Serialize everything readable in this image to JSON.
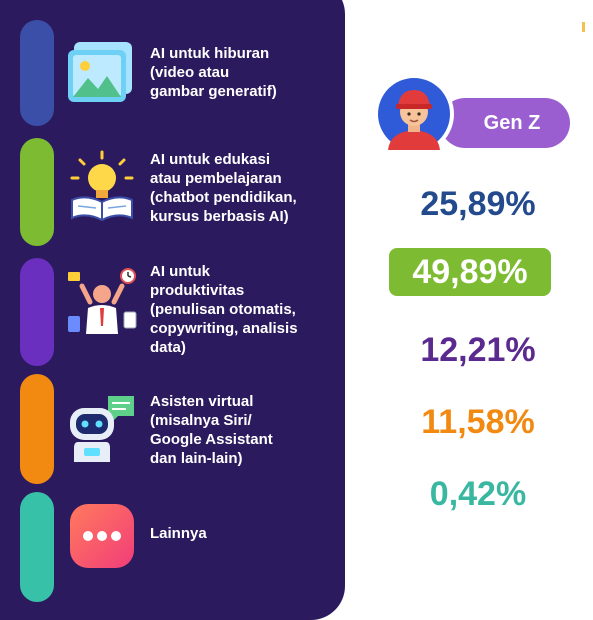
{
  "categories": [
    {
      "id": "hiburan",
      "lines": [
        "AI untuk hiburan",
        "(video atau",
        "gambar generatif)"
      ],
      "color": "#3b4fa8",
      "icon": "landscape-image-icon",
      "value": "",
      "valueColor": ""
    },
    {
      "id": "edukasi",
      "lines": [
        "AI untuk edukasi",
        "atau pembelajaran",
        "(chatbot pendidikan,",
        "kursus berbasis AI)"
      ],
      "color": "#7dbb32",
      "icon": "lightbulb-book-icon",
      "value": "25,89%",
      "valueColor": "#234a8d"
    },
    {
      "id": "produktivitas",
      "lines": [
        "AI untuk",
        "produktivitas",
        "(penulisan otomatis,",
        "copywriting, analisis",
        "data)"
      ],
      "color": "#6a2fbf",
      "icon": "multitasking-person-icon",
      "value": "49,89%",
      "valueColor": "#ffffff"
    },
    {
      "id": "asisten",
      "lines": [
        "Asisten virtual",
        "(misalnya Siri/",
        "Google Assistant",
        "dan lain-lain)"
      ],
      "color": "#f28a12",
      "icon": "robot-assistant-icon",
      "value": "12,21%",
      "valueColor": "#5b2a8e"
    },
    {
      "id": "lainnya",
      "lines": [
        "Lainnya"
      ],
      "color": "#38c1a9",
      "icon": "more-dots-icon",
      "value": "11,58%",
      "valueColor": "#f28a12"
    }
  ],
  "extra_value": {
    "value": "0,42%",
    "color": "#3ab7a1"
  },
  "generation": {
    "label": "Gen Z",
    "avatar_icon": "boy-red-cap-avatar-icon",
    "pill_color": "#9b5ed1"
  },
  "panel_color": "#2c1a5e"
}
